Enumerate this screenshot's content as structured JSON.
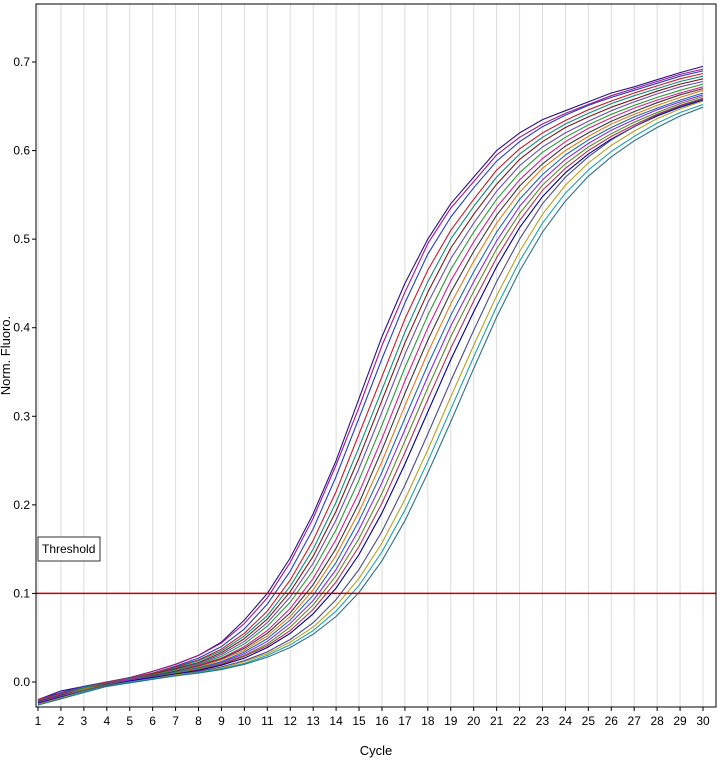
{
  "chart_data": {
    "type": "line",
    "xlabel": "Cycle",
    "ylabel": "Norm. Fluoro.",
    "xlim": [
      1,
      30
    ],
    "ylim": [
      -0.03,
      0.73
    ],
    "x_ticks": [
      1,
      2,
      3,
      4,
      5,
      6,
      7,
      8,
      9,
      10,
      11,
      12,
      13,
      14,
      15,
      16,
      17,
      18,
      19,
      20,
      21,
      22,
      23,
      24,
      25,
      26,
      27,
      28,
      29,
      30
    ],
    "y_ticks": [
      0.0,
      0.1,
      0.2,
      0.3,
      0.4,
      0.5,
      0.6,
      0.7
    ],
    "y_tick_labels": [
      "0.0",
      "0.1",
      "0.2",
      "0.3",
      "0.4",
      "0.5",
      "0.6",
      "0.7"
    ],
    "grid": "vertical",
    "threshold": {
      "label": "Threshold",
      "value": 0.1,
      "color": "#c00000"
    },
    "x": [
      1,
      2,
      3,
      4,
      5,
      6,
      7,
      8,
      9,
      10,
      11,
      12,
      13,
      14,
      15,
      16,
      17,
      18,
      19,
      20,
      21,
      22,
      23,
      24,
      25,
      26,
      27,
      28,
      29,
      30
    ],
    "series": [
      {
        "color": "#2d0f8a",
        "values": [
          -0.02,
          -0.01,
          -0.005,
          0.0,
          0.005,
          0.012,
          0.02,
          0.03,
          0.045,
          0.07,
          0.1,
          0.14,
          0.19,
          0.25,
          0.32,
          0.39,
          0.45,
          0.5,
          0.54,
          0.57,
          0.6,
          0.62,
          0.635,
          0.645,
          0.655,
          0.665,
          0.672,
          0.68,
          0.688,
          0.695
        ]
      },
      {
        "color": "#a0158c",
        "values": [
          -0.02,
          -0.012,
          -0.005,
          0.0,
          0.005,
          0.012,
          0.02,
          0.03,
          0.044,
          0.066,
          0.095,
          0.135,
          0.185,
          0.245,
          0.31,
          0.38,
          0.44,
          0.495,
          0.535,
          0.565,
          0.595,
          0.615,
          0.63,
          0.642,
          0.652,
          0.662,
          0.67,
          0.678,
          0.686,
          0.692
        ]
      },
      {
        "color": "#1f3fbf",
        "values": [
          -0.02,
          -0.012,
          -0.005,
          0.0,
          0.004,
          0.01,
          0.018,
          0.027,
          0.04,
          0.06,
          0.088,
          0.125,
          0.173,
          0.232,
          0.298,
          0.365,
          0.428,
          0.483,
          0.525,
          0.558,
          0.588,
          0.61,
          0.627,
          0.64,
          0.651,
          0.66,
          0.668,
          0.676,
          0.684,
          0.69
        ]
      },
      {
        "color": "#c81a2a",
        "values": [
          -0.02,
          -0.013,
          -0.006,
          0.0,
          0.004,
          0.01,
          0.017,
          0.025,
          0.037,
          0.055,
          0.08,
          0.115,
          0.16,
          0.215,
          0.28,
          0.345,
          0.41,
          0.465,
          0.51,
          0.545,
          0.578,
          0.602,
          0.62,
          0.634,
          0.646,
          0.656,
          0.665,
          0.673,
          0.681,
          0.687
        ]
      },
      {
        "color": "#0f8a7a",
        "values": [
          -0.021,
          -0.014,
          -0.006,
          -0.001,
          0.004,
          0.009,
          0.016,
          0.024,
          0.035,
          0.052,
          0.075,
          0.108,
          0.15,
          0.203,
          0.265,
          0.33,
          0.395,
          0.452,
          0.5,
          0.537,
          0.57,
          0.596,
          0.615,
          0.63,
          0.642,
          0.653,
          0.662,
          0.67,
          0.678,
          0.684
        ]
      },
      {
        "color": "#7a1a1a",
        "values": [
          -0.021,
          -0.014,
          -0.007,
          -0.001,
          0.003,
          0.009,
          0.015,
          0.022,
          0.033,
          0.049,
          0.071,
          0.102,
          0.142,
          0.193,
          0.253,
          0.318,
          0.383,
          0.44,
          0.49,
          0.528,
          0.562,
          0.59,
          0.61,
          0.626,
          0.638,
          0.649,
          0.658,
          0.667,
          0.675,
          0.681
        ]
      },
      {
        "color": "#6a4fb0",
        "values": [
          -0.021,
          -0.014,
          -0.007,
          -0.001,
          0.003,
          0.008,
          0.014,
          0.021,
          0.031,
          0.046,
          0.067,
          0.096,
          0.134,
          0.183,
          0.241,
          0.305,
          0.37,
          0.428,
          0.478,
          0.518,
          0.554,
          0.583,
          0.604,
          0.62,
          0.633,
          0.645,
          0.655,
          0.664,
          0.672,
          0.678
        ]
      },
      {
        "color": "#2a9a3a",
        "values": [
          -0.022,
          -0.015,
          -0.007,
          -0.002,
          0.003,
          0.008,
          0.013,
          0.02,
          0.029,
          0.043,
          0.063,
          0.09,
          0.126,
          0.172,
          0.228,
          0.29,
          0.355,
          0.414,
          0.466,
          0.508,
          0.545,
          0.575,
          0.598,
          0.615,
          0.629,
          0.641,
          0.651,
          0.66,
          0.668,
          0.675
        ]
      },
      {
        "color": "#d02090",
        "values": [
          -0.022,
          -0.015,
          -0.008,
          -0.002,
          0.003,
          0.007,
          0.012,
          0.019,
          0.027,
          0.04,
          0.058,
          0.083,
          0.117,
          0.161,
          0.214,
          0.275,
          0.34,
          0.4,
          0.453,
          0.497,
          0.536,
          0.567,
          0.591,
          0.61,
          0.625,
          0.637,
          0.648,
          0.657,
          0.665,
          0.672
        ]
      },
      {
        "color": "#3a3a3a",
        "values": [
          -0.022,
          -0.015,
          -0.008,
          -0.002,
          0.002,
          0.007,
          0.012,
          0.018,
          0.026,
          0.038,
          0.055,
          0.078,
          0.11,
          0.151,
          0.202,
          0.262,
          0.326,
          0.386,
          0.44,
          0.486,
          0.527,
          0.56,
          0.585,
          0.605,
          0.62,
          0.633,
          0.644,
          0.654,
          0.663,
          0.67
        ]
      },
      {
        "color": "#e07a1a",
        "values": [
          -0.023,
          -0.016,
          -0.008,
          -0.003,
          0.002,
          0.006,
          0.011,
          0.017,
          0.025,
          0.036,
          0.052,
          0.074,
          0.104,
          0.143,
          0.192,
          0.249,
          0.312,
          0.372,
          0.427,
          0.475,
          0.518,
          0.553,
          0.58,
          0.6,
          0.616,
          0.63,
          0.641,
          0.651,
          0.66,
          0.668
        ]
      },
      {
        "color": "#1a6ab0",
        "values": [
          -0.023,
          -0.016,
          -0.009,
          -0.003,
          0.002,
          0.006,
          0.011,
          0.016,
          0.023,
          0.034,
          0.049,
          0.07,
          0.098,
          0.135,
          0.182,
          0.237,
          0.298,
          0.358,
          0.414,
          0.463,
          0.508,
          0.545,
          0.573,
          0.595,
          0.612,
          0.626,
          0.638,
          0.648,
          0.657,
          0.665
        ]
      },
      {
        "color": "#8a2be2",
        "values": [
          -0.023,
          -0.016,
          -0.009,
          -0.003,
          0.002,
          0.006,
          0.01,
          0.015,
          0.022,
          0.032,
          0.046,
          0.066,
          0.092,
          0.127,
          0.172,
          0.225,
          0.285,
          0.345,
          0.402,
          0.452,
          0.498,
          0.537,
          0.567,
          0.59,
          0.608,
          0.623,
          0.635,
          0.646,
          0.655,
          0.663
        ]
      },
      {
        "color": "#5a8a2a",
        "values": [
          -0.024,
          -0.017,
          -0.009,
          -0.003,
          0.001,
          0.005,
          0.01,
          0.015,
          0.021,
          0.03,
          0.043,
          0.062,
          0.087,
          0.12,
          0.162,
          0.213,
          0.272,
          0.332,
          0.39,
          0.441,
          0.489,
          0.529,
          0.561,
          0.585,
          0.604,
          0.619,
          0.632,
          0.643,
          0.653,
          0.661
        ]
      },
      {
        "color": "#b03060",
        "values": [
          -0.024,
          -0.017,
          -0.01,
          -0.004,
          0.001,
          0.005,
          0.009,
          0.014,
          0.02,
          0.029,
          0.041,
          0.058,
          0.082,
          0.113,
          0.153,
          0.202,
          0.259,
          0.319,
          0.377,
          0.43,
          0.479,
          0.521,
          0.555,
          0.58,
          0.6,
          0.616,
          0.629,
          0.641,
          0.651,
          0.659
        ]
      },
      {
        "color": "#00008b",
        "values": [
          -0.024,
          -0.017,
          -0.01,
          -0.004,
          0.001,
          0.005,
          0.009,
          0.013,
          0.019,
          0.027,
          0.039,
          0.055,
          0.077,
          0.106,
          0.144,
          0.191,
          0.246,
          0.305,
          0.364,
          0.418,
          0.469,
          0.513,
          0.548,
          0.575,
          0.596,
          0.613,
          0.627,
          0.639,
          0.649,
          0.657
        ]
      },
      {
        "color": "#4a4a8a",
        "values": [
          -0.025,
          -0.018,
          -0.01,
          -0.004,
          0.0,
          0.004,
          0.008,
          0.012,
          0.017,
          0.024,
          0.034,
          0.048,
          0.067,
          0.093,
          0.127,
          0.17,
          0.222,
          0.28,
          0.34,
          0.397,
          0.452,
          0.5,
          0.54,
          0.57,
          0.593,
          0.612,
          0.627,
          0.64,
          0.65,
          0.658
        ]
      },
      {
        "color": "#b8a020",
        "values": [
          -0.025,
          -0.018,
          -0.011,
          -0.005,
          0.0,
          0.004,
          0.008,
          0.011,
          0.016,
          0.023,
          0.032,
          0.045,
          0.062,
          0.086,
          0.117,
          0.157,
          0.206,
          0.262,
          0.322,
          0.38,
          0.436,
          0.486,
          0.528,
          0.561,
          0.586,
          0.606,
          0.622,
          0.636,
          0.647,
          0.656
        ]
      },
      {
        "color": "#20a0b0",
        "values": [
          -0.026,
          -0.019,
          -0.011,
          -0.005,
          0.0,
          0.004,
          0.007,
          0.011,
          0.015,
          0.021,
          0.03,
          0.042,
          0.058,
          0.08,
          0.109,
          0.147,
          0.194,
          0.249,
          0.308,
          0.367,
          0.424,
          0.475,
          0.518,
          0.552,
          0.578,
          0.599,
          0.616,
          0.631,
          0.643,
          0.652
        ]
      },
      {
        "color": "#2f6f8f",
        "values": [
          -0.026,
          -0.019,
          -0.012,
          -0.005,
          -0.001,
          0.003,
          0.007,
          0.01,
          0.014,
          0.02,
          0.028,
          0.039,
          0.054,
          0.074,
          0.101,
          0.137,
          0.182,
          0.236,
          0.294,
          0.354,
          0.412,
          0.464,
          0.508,
          0.543,
          0.571,
          0.593,
          0.611,
          0.626,
          0.639,
          0.649
        ]
      }
    ]
  }
}
